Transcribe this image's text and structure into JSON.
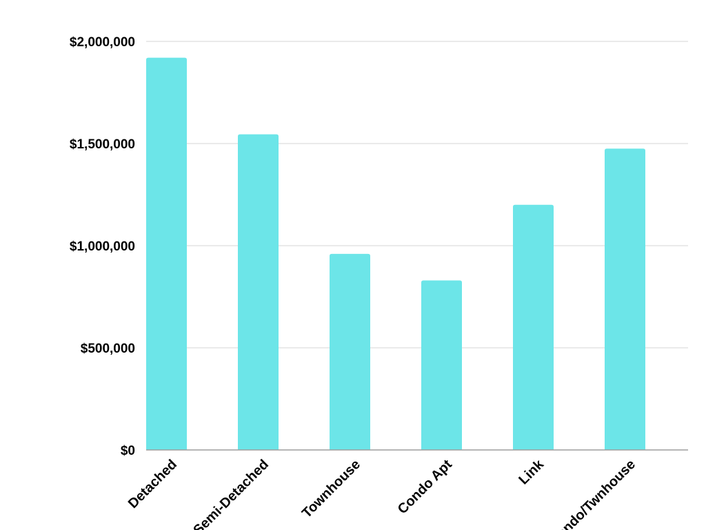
{
  "chart_data": {
    "type": "bar",
    "title": "",
    "xlabel": "",
    "ylabel": "",
    "categories": [
      "Detached",
      "Semi-Detached",
      "Townhouse",
      "Condo Apt",
      "Link",
      "Condo/Twnhouse"
    ],
    "values": [
      1920000,
      1545000,
      960000,
      830000,
      1200000,
      1475000
    ],
    "ylim": [
      0,
      2000000
    ],
    "yticks": [
      0,
      500000,
      1000000,
      1500000,
      2000000
    ],
    "ytick_labels": [
      "$0",
      "$500,000",
      "$1,000,000",
      "$1,500,000",
      "$2,000,000"
    ],
    "grid": true,
    "legend": "none",
    "colors": {
      "bar": "#6ce5e8",
      "grid": "#d6d6d6",
      "axis": "#9e9e9e",
      "text": "#000000"
    }
  }
}
